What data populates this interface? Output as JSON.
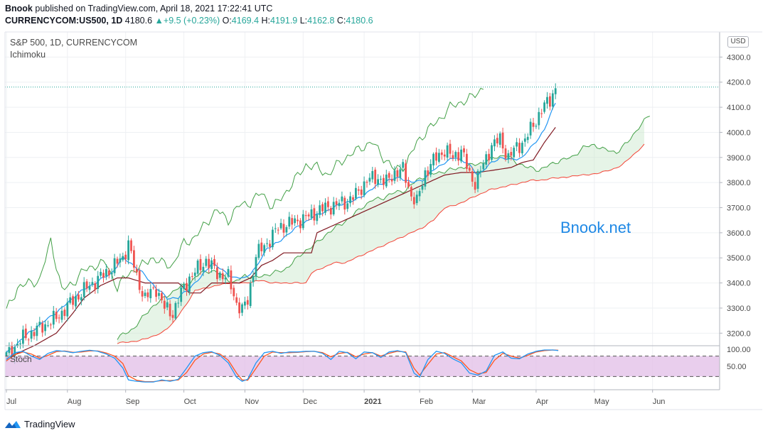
{
  "header": {
    "author": "Bnook",
    "published_text": "published on TradingView.com, April 18, 2021 17:22:41 UTC",
    "symbol": "CURRENCYCOM:US500, 1D",
    "last": "4180.6",
    "change": "+9.5 (+0.23%)",
    "o_label": "O:",
    "o": "4169.4",
    "h_label": "H:",
    "h": "4191.9",
    "l_label": "L:",
    "l": "4162.8",
    "c_label": "C:",
    "c": "4180.6"
  },
  "pane": {
    "title": "S&P 500, 1D, CURRENCYCOM",
    "indicator": "Ichimoku",
    "stoch_label": "Stoch",
    "currency": "USD",
    "watermark": "Bnook.net"
  },
  "footer": {
    "brand": "TradingView"
  },
  "colors": {
    "up": "#26a69a",
    "down": "#ef5350",
    "tenkan": "#2196f3",
    "kijun": "#801922",
    "spanA": "#43a047",
    "spanB": "#f44336",
    "lagging": "#43a047",
    "cloud_bull": "#c8e6c9",
    "cloud_bear": "#ffcdd2",
    "stoch_k": "#2196f3",
    "stoch_d": "#ff5722",
    "stoch_band": "#e1bee7"
  },
  "chart_data": {
    "type": "candlestick",
    "y_ticks": [
      "3200.0",
      "3300.0",
      "3400.0",
      "3500.0",
      "3600.0",
      "3700.0",
      "3800.0",
      "3900.0",
      "4000.0",
      "4100.0",
      "4200.0",
      "4300.0"
    ],
    "ylim": [
      3150,
      4400
    ],
    "x_labels": [
      {
        "label": "Jul",
        "idx": 0
      },
      {
        "label": "Aug",
        "idx": 22
      },
      {
        "label": "Sep",
        "idx": 43
      },
      {
        "label": "Oct",
        "idx": 64
      },
      {
        "label": "Nov",
        "idx": 86
      },
      {
        "label": "Dec",
        "idx": 107
      },
      {
        "label": "2021",
        "idx": 129,
        "bold": true
      },
      {
        "label": "Feb",
        "idx": 149
      },
      {
        "label": "Mar",
        "idx": 168
      },
      {
        "label": "Apr",
        "idx": 191
      },
      {
        "label": "May",
        "idx": 212
      },
      {
        "label": "Jun",
        "idx": 233
      }
    ],
    "last_price": 4180.6,
    "close_anchors": [
      [
        0,
        3110
      ],
      [
        6,
        3180
      ],
      [
        12,
        3220
      ],
      [
        18,
        3260
      ],
      [
        24,
        3330
      ],
      [
        30,
        3390
      ],
      [
        36,
        3440
      ],
      [
        42,
        3500
      ],
      [
        44,
        3560
      ],
      [
        47,
        3420
      ],
      [
        50,
        3340
      ],
      [
        54,
        3380
      ],
      [
        57,
        3300
      ],
      [
        60,
        3280
      ],
      [
        63,
        3360
      ],
      [
        66,
        3420
      ],
      [
        72,
        3490
      ],
      [
        76,
        3440
      ],
      [
        80,
        3420
      ],
      [
        83,
        3320
      ],
      [
        85,
        3290
      ],
      [
        87,
        3330
      ],
      [
        90,
        3510
      ],
      [
        94,
        3560
      ],
      [
        98,
        3620
      ],
      [
        103,
        3640
      ],
      [
        108,
        3660
      ],
      [
        113,
        3690
      ],
      [
        118,
        3710
      ],
      [
        122,
        3720
      ],
      [
        126,
        3750
      ],
      [
        130,
        3810
      ],
      [
        134,
        3820
      ],
      [
        137,
        3800
      ],
      [
        140,
        3840
      ],
      [
        143,
        3850
      ],
      [
        146,
        3750
      ],
      [
        148,
        3720
      ],
      [
        151,
        3840
      ],
      [
        155,
        3900
      ],
      [
        158,
        3930
      ],
      [
        161,
        3900
      ],
      [
        164,
        3930
      ],
      [
        167,
        3830
      ],
      [
        169,
        3800
      ],
      [
        172,
        3870
      ],
      [
        175,
        3950
      ],
      [
        178,
        3970
      ],
      [
        181,
        3900
      ],
      [
        184,
        3940
      ],
      [
        187,
        3970
      ],
      [
        190,
        4030
      ],
      [
        193,
        4090
      ],
      [
        196,
        4130
      ],
      [
        198,
        4180
      ]
    ],
    "lagging_anchors": [
      [
        0,
        3290
      ],
      [
        4,
        3380
      ],
      [
        8,
        3400
      ],
      [
        12,
        3410
      ],
      [
        16,
        3570
      ],
      [
        20,
        3370
      ],
      [
        24,
        3400
      ],
      [
        28,
        3450
      ],
      [
        32,
        3470
      ],
      [
        36,
        3480
      ],
      [
        40,
        3380
      ],
      [
        44,
        3440
      ],
      [
        48,
        3460
      ],
      [
        52,
        3500
      ],
      [
        56,
        3480
      ],
      [
        60,
        3470
      ],
      [
        64,
        3560
      ],
      [
        68,
        3580
      ],
      [
        72,
        3640
      ],
      [
        76,
        3690
      ],
      [
        80,
        3650
      ],
      [
        84,
        3710
      ],
      [
        88,
        3720
      ],
      [
        92,
        3760
      ],
      [
        96,
        3700
      ],
      [
        100,
        3750
      ],
      [
        104,
        3810
      ],
      [
        108,
        3870
      ],
      [
        112,
        3860
      ],
      [
        116,
        3830
      ],
      [
        120,
        3880
      ],
      [
        124,
        3910
      ],
      [
        128,
        3940
      ],
      [
        132,
        3960
      ],
      [
        136,
        3900
      ],
      [
        140,
        3850
      ],
      [
        144,
        3870
      ],
      [
        148,
        3960
      ],
      [
        152,
        4010
      ],
      [
        156,
        4050
      ],
      [
        160,
        4100
      ],
      [
        164,
        4120
      ],
      [
        168,
        4140
      ],
      [
        172,
        4180
      ]
    ],
    "spanA_anchors": [
      [
        40,
        3180
      ],
      [
        46,
        3220
      ],
      [
        52,
        3300
      ],
      [
        58,
        3350
      ],
      [
        62,
        3380
      ],
      [
        66,
        3400
      ],
      [
        70,
        3440
      ],
      [
        74,
        3450
      ],
      [
        78,
        3430
      ],
      [
        82,
        3400
      ],
      [
        86,
        3430
      ],
      [
        90,
        3420
      ],
      [
        96,
        3440
      ],
      [
        100,
        3450
      ],
      [
        104,
        3490
      ],
      [
        108,
        3530
      ],
      [
        112,
        3560
      ],
      [
        116,
        3600
      ],
      [
        120,
        3630
      ],
      [
        124,
        3660
      ],
      [
        128,
        3700
      ],
      [
        132,
        3730
      ],
      [
        136,
        3740
      ],
      [
        140,
        3760
      ],
      [
        144,
        3770
      ],
      [
        148,
        3810
      ],
      [
        152,
        3830
      ],
      [
        156,
        3840
      ],
      [
        160,
        3850
      ],
      [
        164,
        3860
      ],
      [
        168,
        3870
      ],
      [
        172,
        3880
      ],
      [
        176,
        3900
      ],
      [
        180,
        3910
      ],
      [
        184,
        3880
      ],
      [
        188,
        3860
      ],
      [
        192,
        3850
      ],
      [
        196,
        3870
      ],
      [
        200,
        3890
      ],
      [
        204,
        3900
      ],
      [
        208,
        3940
      ],
      [
        212,
        3950
      ],
      [
        216,
        3930
      ],
      [
        220,
        3920
      ],
      [
        224,
        3960
      ],
      [
        228,
        4020
      ],
      [
        232,
        4070
      ]
    ],
    "spanB_anchors": [
      [
        40,
        3160
      ],
      [
        48,
        3170
      ],
      [
        56,
        3200
      ],
      [
        60,
        3240
      ],
      [
        64,
        3300
      ],
      [
        68,
        3370
      ],
      [
        72,
        3380
      ],
      [
        76,
        3390
      ],
      [
        80,
        3400
      ],
      [
        86,
        3400
      ],
      [
        92,
        3410
      ],
      [
        96,
        3400
      ],
      [
        100,
        3400
      ],
      [
        104,
        3400
      ],
      [
        108,
        3400
      ],
      [
        110,
        3440
      ],
      [
        114,
        3460
      ],
      [
        118,
        3480
      ],
      [
        122,
        3480
      ],
      [
        126,
        3500
      ],
      [
        130,
        3520
      ],
      [
        134,
        3540
      ],
      [
        138,
        3560
      ],
      [
        142,
        3580
      ],
      [
        146,
        3600
      ],
      [
        150,
        3620
      ],
      [
        154,
        3650
      ],
      [
        158,
        3700
      ],
      [
        162,
        3710
      ],
      [
        166,
        3730
      ],
      [
        170,
        3750
      ],
      [
        174,
        3770
      ],
      [
        178,
        3780
      ],
      [
        182,
        3790
      ],
      [
        186,
        3800
      ],
      [
        190,
        3810
      ],
      [
        194,
        3810
      ],
      [
        198,
        3820
      ],
      [
        202,
        3820
      ],
      [
        206,
        3830
      ],
      [
        210,
        3830
      ],
      [
        214,
        3840
      ],
      [
        218,
        3850
      ],
      [
        222,
        3870
      ],
      [
        226,
        3910
      ],
      [
        230,
        3950
      ]
    ],
    "tenkan_anchors": [
      [
        0,
        3120
      ],
      [
        8,
        3200
      ],
      [
        14,
        3250
      ],
      [
        20,
        3300
      ],
      [
        26,
        3360
      ],
      [
        32,
        3400
      ],
      [
        38,
        3440
      ],
      [
        42,
        3500
      ],
      [
        46,
        3470
      ],
      [
        50,
        3430
      ],
      [
        54,
        3380
      ],
      [
        58,
        3340
      ],
      [
        62,
        3340
      ],
      [
        66,
        3380
      ],
      [
        70,
        3420
      ],
      [
        74,
        3480
      ],
      [
        78,
        3450
      ],
      [
        82,
        3420
      ],
      [
        86,
        3420
      ],
      [
        90,
        3460
      ],
      [
        94,
        3540
      ],
      [
        98,
        3560
      ],
      [
        102,
        3600
      ],
      [
        106,
        3630
      ],
      [
        110,
        3660
      ],
      [
        114,
        3680
      ],
      [
        118,
        3700
      ],
      [
        122,
        3720
      ],
      [
        126,
        3730
      ],
      [
        130,
        3760
      ],
      [
        134,
        3790
      ],
      [
        138,
        3810
      ],
      [
        142,
        3820
      ],
      [
        146,
        3800
      ],
      [
        150,
        3810
      ],
      [
        154,
        3850
      ],
      [
        158,
        3880
      ],
      [
        162,
        3900
      ],
      [
        166,
        3880
      ],
      [
        170,
        3830
      ],
      [
        174,
        3870
      ],
      [
        178,
        3900
      ],
      [
        182,
        3890
      ],
      [
        186,
        3900
      ],
      [
        190,
        3950
      ],
      [
        194,
        4010
      ],
      [
        198,
        4120
      ]
    ],
    "kijun_anchors": [
      [
        0,
        3100
      ],
      [
        10,
        3150
      ],
      [
        18,
        3200
      ],
      [
        24,
        3280
      ],
      [
        28,
        3340
      ],
      [
        34,
        3390
      ],
      [
        40,
        3420
      ],
      [
        44,
        3420
      ],
      [
        50,
        3400
      ],
      [
        56,
        3400
      ],
      [
        62,
        3400
      ],
      [
        66,
        3360
      ],
      [
        70,
        3360
      ],
      [
        74,
        3400
      ],
      [
        78,
        3400
      ],
      [
        84,
        3400
      ],
      [
        88,
        3420
      ],
      [
        92,
        3470
      ],
      [
        96,
        3490
      ],
      [
        100,
        3520
      ],
      [
        104,
        3520
      ],
      [
        110,
        3520
      ],
      [
        112,
        3600
      ],
      [
        116,
        3620
      ],
      [
        120,
        3640
      ],
      [
        124,
        3660
      ],
      [
        128,
        3680
      ],
      [
        132,
        3700
      ],
      [
        136,
        3720
      ],
      [
        140,
        3740
      ],
      [
        144,
        3760
      ],
      [
        148,
        3780
      ],
      [
        152,
        3800
      ],
      [
        158,
        3830
      ],
      [
        164,
        3840
      ],
      [
        170,
        3840
      ],
      [
        176,
        3850
      ],
      [
        182,
        3860
      ],
      [
        186,
        3880
      ],
      [
        190,
        3890
      ],
      [
        194,
        3960
      ],
      [
        198,
        4020
      ]
    ],
    "stoch_k_anchors": [
      [
        0,
        70
      ],
      [
        3,
        90
      ],
      [
        6,
        94
      ],
      [
        9,
        80
      ],
      [
        12,
        70
      ],
      [
        15,
        88
      ],
      [
        18,
        96
      ],
      [
        21,
        94
      ],
      [
        24,
        90
      ],
      [
        27,
        94
      ],
      [
        30,
        97
      ],
      [
        33,
        94
      ],
      [
        36,
        86
      ],
      [
        39,
        74
      ],
      [
        42,
        45
      ],
      [
        44,
        10
      ],
      [
        47,
        6
      ],
      [
        50,
        4
      ],
      [
        53,
        4
      ],
      [
        56,
        10
      ],
      [
        59,
        6
      ],
      [
        62,
        12
      ],
      [
        65,
        45
      ],
      [
        68,
        80
      ],
      [
        71,
        90
      ],
      [
        74,
        93
      ],
      [
        77,
        82
      ],
      [
        80,
        60
      ],
      [
        83,
        18
      ],
      [
        85,
        6
      ],
      [
        87,
        12
      ],
      [
        90,
        60
      ],
      [
        93,
        90
      ],
      [
        96,
        94
      ],
      [
        99,
        88
      ],
      [
        102,
        92
      ],
      [
        105,
        92
      ],
      [
        108,
        94
      ],
      [
        111,
        94
      ],
      [
        114,
        88
      ],
      [
        117,
        70
      ],
      [
        120,
        94
      ],
      [
        123,
        90
      ],
      [
        126,
        72
      ],
      [
        129,
        92
      ],
      [
        132,
        90
      ],
      [
        135,
        76
      ],
      [
        138,
        92
      ],
      [
        141,
        96
      ],
      [
        144,
        90
      ],
      [
        147,
        30
      ],
      [
        149,
        18
      ],
      [
        152,
        70
      ],
      [
        155,
        94
      ],
      [
        158,
        88
      ],
      [
        161,
        72
      ],
      [
        164,
        60
      ],
      [
        167,
        30
      ],
      [
        170,
        24
      ],
      [
        173,
        36
      ],
      [
        176,
        82
      ],
      [
        179,
        92
      ],
      [
        182,
        74
      ],
      [
        185,
        72
      ],
      [
        188,
        86
      ],
      [
        191,
        94
      ],
      [
        194,
        98
      ],
      [
        197,
        98
      ],
      [
        199,
        96
      ]
    ],
    "stoch_d_anchors": [
      [
        0,
        66
      ],
      [
        3,
        84
      ],
      [
        6,
        92
      ],
      [
        9,
        86
      ],
      [
        12,
        74
      ],
      [
        15,
        82
      ],
      [
        18,
        93
      ],
      [
        21,
        95
      ],
      [
        24,
        91
      ],
      [
        27,
        92
      ],
      [
        30,
        95
      ],
      [
        33,
        95
      ],
      [
        36,
        89
      ],
      [
        39,
        80
      ],
      [
        42,
        58
      ],
      [
        44,
        22
      ],
      [
        47,
        9
      ],
      [
        50,
        5
      ],
      [
        53,
        5
      ],
      [
        56,
        8
      ],
      [
        59,
        8
      ],
      [
        62,
        10
      ],
      [
        65,
        32
      ],
      [
        68,
        68
      ],
      [
        71,
        86
      ],
      [
        74,
        91
      ],
      [
        77,
        86
      ],
      [
        80,
        68
      ],
      [
        83,
        30
      ],
      [
        85,
        10
      ],
      [
        87,
        9
      ],
      [
        90,
        44
      ],
      [
        93,
        80
      ],
      [
        96,
        92
      ],
      [
        99,
        90
      ],
      [
        102,
        90
      ],
      [
        105,
        91
      ],
      [
        108,
        93
      ],
      [
        111,
        94
      ],
      [
        114,
        90
      ],
      [
        117,
        78
      ],
      [
        120,
        88
      ],
      [
        123,
        91
      ],
      [
        126,
        78
      ],
      [
        129,
        86
      ],
      [
        132,
        90
      ],
      [
        135,
        80
      ],
      [
        138,
        88
      ],
      [
        141,
        94
      ],
      [
        144,
        92
      ],
      [
        147,
        44
      ],
      [
        149,
        24
      ],
      [
        152,
        56
      ],
      [
        155,
        86
      ],
      [
        158,
        90
      ],
      [
        161,
        78
      ],
      [
        164,
        66
      ],
      [
        167,
        40
      ],
      [
        170,
        28
      ],
      [
        173,
        32
      ],
      [
        176,
        68
      ],
      [
        179,
        88
      ],
      [
        182,
        80
      ],
      [
        185,
        74
      ],
      [
        188,
        82
      ],
      [
        191,
        92
      ],
      [
        194,
        96
      ],
      [
        197,
        98
      ],
      [
        199,
        97
      ]
    ],
    "stoch_ticks": [
      "100.00",
      "50.00"
    ],
    "stoch_levels": [
      80,
      20
    ]
  }
}
